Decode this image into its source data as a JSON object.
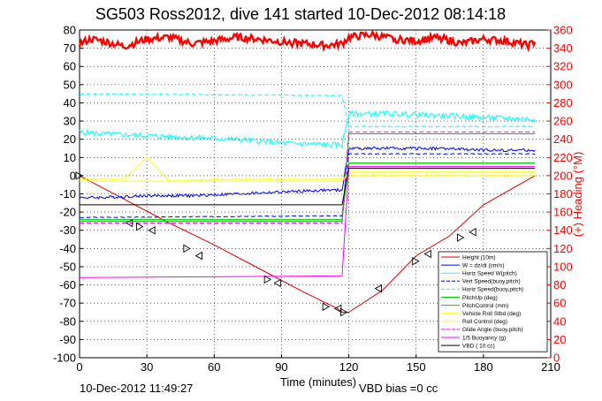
{
  "chart_data": {
    "type": "line",
    "title": "SG503 Ross2012, dive 141 started 10-Dec-2012 08:14:18",
    "xlabel": "Time (minutes)",
    "ylabel_right": "(+) Heading (°M)",
    "xlim": [
      0,
      210
    ],
    "ylim": [
      -100,
      80
    ],
    "ylim_right": [
      0,
      360
    ],
    "grid": true,
    "xticks": [
      "0",
      "30",
      "60",
      "90",
      "120",
      "150",
      "180",
      "210"
    ],
    "yticks": [
      "80",
      "70",
      "60",
      "50",
      "40",
      "30",
      "20",
      "10",
      "0",
      "-10",
      "-20",
      "-30",
      "-40",
      "-50",
      "-60",
      "-70",
      "-80",
      "-90",
      "-100"
    ],
    "yticks_right": [
      "360",
      "340",
      "320",
      "300",
      "280",
      "260",
      "240",
      "220",
      "200",
      "180",
      "160",
      "140",
      "120",
      "100",
      "80",
      "60",
      "40",
      "20",
      "0"
    ],
    "legend_position": "bottom-right",
    "footer_left": "10-Dec-2012 11:49:27",
    "footer_center": "VBD bias =0 cc",
    "colors": {
      "red": "#e00000",
      "blue": "#0000ff",
      "cyan": "#00ffff",
      "green": "#00c800",
      "yellow": "#ffff00",
      "magenta": "#ff00ff",
      "black": "#000000",
      "heading": "#ff0000"
    },
    "series": [
      {
        "name": "Height (10m)",
        "color": "#e00000",
        "style": "solid",
        "x": [
          0,
          20,
          40,
          60,
          80,
          100,
          115,
          117,
          120,
          135,
          150,
          165,
          180,
          203
        ],
        "y": [
          0,
          -13,
          -26,
          -38,
          -51,
          -64,
          -73,
          -75,
          -75,
          -63,
          -44,
          -33,
          -16,
          0
        ]
      },
      {
        "name": "W = dz/dt (cm/s)",
        "color": "#0000ff",
        "style": "solid",
        "x": [
          0,
          10,
          30,
          50,
          70,
          90,
          110,
          117,
          120,
          140,
          160,
          180,
          203
        ],
        "y": [
          -12,
          -12,
          -11,
          -11,
          -10,
          -9,
          -8,
          -8,
          15,
          15,
          15,
          14,
          14
        ]
      },
      {
        "name": "Horiz Speed W(pitch)",
        "color": "#00ffff",
        "style": "solid",
        "x": [
          0,
          10,
          30,
          50,
          70,
          90,
          110,
          117,
          120,
          140,
          160,
          180,
          203
        ],
        "y": [
          24,
          23,
          22,
          21,
          20,
          18,
          17,
          17,
          34,
          34,
          33,
          32,
          31
        ]
      },
      {
        "name": "Vert Speed(buoy,pitch)",
        "color": "#0000ff",
        "style": "dashed",
        "x": [
          0,
          117,
          120,
          203
        ],
        "y": [
          -23,
          -22,
          12,
          12
        ]
      },
      {
        "name": "Horiz Speed(buoy,pitch)",
        "color": "#00ffff",
        "style": "dashed",
        "x": [
          0,
          117,
          120,
          203
        ],
        "y": [
          45,
          44,
          27,
          27
        ]
      },
      {
        "name": "PitchUp (deg)",
        "color": "#00c800",
        "style": "solid",
        "x": [
          0,
          117,
          120,
          203
        ],
        "y": [
          -25,
          -25,
          23,
          23
        ]
      },
      {
        "name": "PitchControl (mm)",
        "color": "#00c800",
        "style": "solid",
        "x": [
          0,
          117,
          120,
          203
        ],
        "y": [
          -24,
          -24,
          7,
          7
        ]
      },
      {
        "name": "Vehicle Roll Stbd (deg)",
        "color": "#ffff00",
        "style": "solid",
        "x": [
          0,
          20,
          30,
          40,
          60,
          80,
          100,
          117,
          120,
          140,
          160,
          180,
          203
        ],
        "y": [
          -2,
          -2,
          10,
          -3,
          -2,
          -2,
          -2,
          -2,
          0,
          0,
          0,
          0,
          0
        ]
      },
      {
        "name": "Roll Control (deg)",
        "color": "#ffff00",
        "style": "solid",
        "x": [
          0,
          117,
          120,
          203
        ],
        "y": [
          -3,
          -3,
          2,
          2
        ]
      },
      {
        "name": "Glide Angle (buoy,pitch)",
        "color": "#ff00ff",
        "style": "dashed",
        "x": [
          0,
          117,
          120,
          203
        ],
        "y": [
          -26,
          -26,
          24,
          24
        ]
      },
      {
        "name": "1/5 Buoyancy (g)",
        "color": "#ff00ff",
        "style": "solid",
        "x": [
          0,
          117,
          120,
          203
        ],
        "y": [
          -56,
          -55,
          5,
          5
        ]
      },
      {
        "name": "VBD ( 10 cc)",
        "color": "#000000",
        "style": "solid",
        "x": [
          0,
          117,
          120,
          203
        ],
        "y": [
          -16,
          -16,
          4,
          4
        ]
      }
    ],
    "heading": {
      "name": "Heading",
      "axis": "right",
      "color": "#ff0000",
      "x": [
        0,
        5,
        10,
        20,
        30,
        40,
        50,
        60,
        70,
        80,
        90,
        100,
        110,
        117,
        120,
        130,
        140,
        150,
        160,
        170,
        180,
        190,
        200,
        203
      ],
      "y": [
        345,
        350,
        348,
        342,
        350,
        352,
        345,
        348,
        352,
        350,
        347,
        345,
        343,
        345,
        352,
        355,
        350,
        348,
        352,
        345,
        350,
        348,
        343,
        347
      ]
    },
    "markers": {
      "x": [
        0,
        22,
        27,
        32,
        48,
        53,
        84,
        88,
        110,
        115,
        118,
        133,
        150,
        155,
        170,
        175
      ],
      "y": [
        0,
        -26,
        -28,
        -30,
        -40,
        -44,
        -57,
        -59,
        -72,
        -73,
        -75,
        -62,
        -47,
        -43,
        -34,
        -31
      ]
    }
  }
}
